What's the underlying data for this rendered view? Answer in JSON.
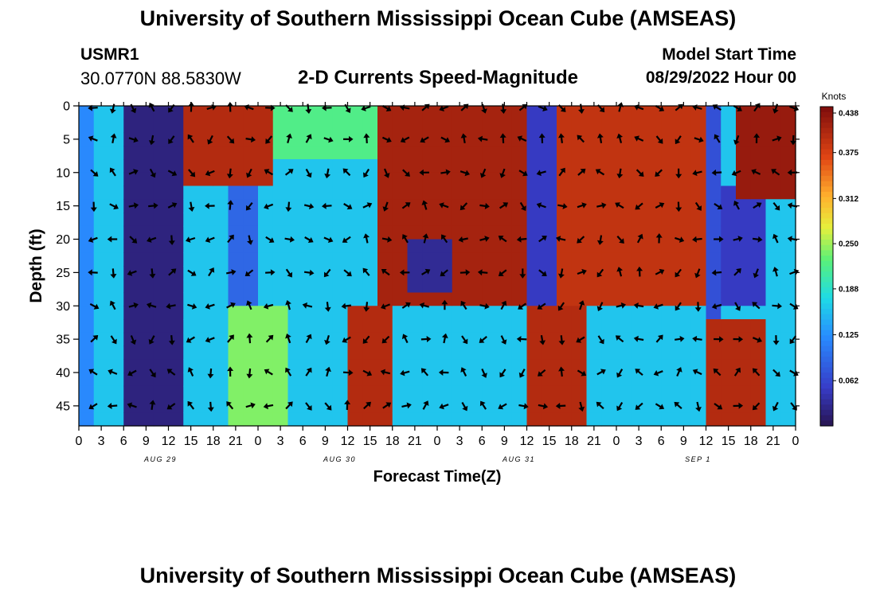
{
  "page": {
    "title": "University of Southern Mississippi Ocean Cube (AMSEAS)",
    "title_bottom": "University of Southern Mississippi Ocean Cube (AMSEAS)",
    "station_id": "USMR1",
    "station_coords": "30.0770N  88.5830W",
    "subtitle": "2-D Currents Speed-Magnitude",
    "start_label": "Model Start Time",
    "start_value": "08/29/2022 Hour 00"
  },
  "chart_data": {
    "type": "heatmap",
    "title": "2-D Currents Speed-Magnitude",
    "xlabel": "Forecast Time(Z)",
    "ylabel": "Depth (ft)",
    "x_ticks": [
      "0",
      "3",
      "6",
      "9",
      "12",
      "15",
      "18",
      "21",
      "0",
      "3",
      "6",
      "9",
      "12",
      "15",
      "18",
      "21",
      "0",
      "3",
      "6",
      "9",
      "12",
      "15",
      "18",
      "21",
      "0",
      "3",
      "6",
      "9",
      "12",
      "15",
      "18",
      "21",
      "0"
    ],
    "x_range_hours": [
      0,
      96
    ],
    "date_labels": [
      {
        "label": "AUG 29",
        "hour": 12
      },
      {
        "label": "AUG 30",
        "hour": 36
      },
      {
        "label": "AUG 31",
        "hour": 60
      },
      {
        "label": "SEP 1",
        "hour": 84
      }
    ],
    "y_ticks": [
      "0",
      "5",
      "10",
      "15",
      "20",
      "25",
      "30",
      "35",
      "40",
      "45"
    ],
    "y_range_ft": [
      0,
      48
    ],
    "colorbar": {
      "unit": "Knots",
      "ticks": [
        "0.438",
        "0.375",
        "0.312",
        "0.250",
        "0.188",
        "0.125",
        "0.062"
      ],
      "range": [
        0,
        0.438
      ]
    },
    "vector_rows_ft": [
      0,
      5,
      10,
      15,
      20,
      25,
      30,
      35,
      40,
      45
    ],
    "speed_field": [
      {
        "depths": [
          0,
          48
        ],
        "hour_range": [
          0,
          2
        ],
        "v": 0.12
      },
      {
        "depths": [
          0,
          48
        ],
        "hour_range": [
          7,
          13
        ],
        "v": 0.02
      },
      {
        "depths": [
          0,
          12
        ],
        "hour_range": [
          15,
          25
        ],
        "v": 0.4
      },
      {
        "depths": [
          12,
          30
        ],
        "hour_range": [
          20,
          24
        ],
        "v": 0.09
      },
      {
        "depths": [
          30,
          48
        ],
        "hour_range": [
          20,
          28
        ],
        "v": 0.24
      },
      {
        "depths": [
          0,
          8
        ],
        "hour_range": [
          26,
          40
        ],
        "v": 0.22
      },
      {
        "depths": [
          30,
          48
        ],
        "hour_range": [
          37,
          42
        ],
        "v": 0.4
      },
      {
        "depths": [
          0,
          30
        ],
        "hour_range": [
          41,
          62
        ],
        "v": 0.41
      },
      {
        "depths": [
          20,
          28
        ],
        "hour_range": [
          44,
          50
        ],
        "v": 0.03
      },
      {
        "depths": [
          0,
          30
        ],
        "hour_range": [
          61,
          64
        ],
        "v": 0.05
      },
      {
        "depths": [
          30,
          48
        ],
        "hour_range": [
          61,
          68
        ],
        "v": 0.4
      },
      {
        "depths": [
          0,
          30
        ],
        "hour_range": [
          65,
          84
        ],
        "v": 0.39
      },
      {
        "depths": [
          0,
          48
        ],
        "hour_range": [
          84,
          86
        ],
        "v": 0.07
      },
      {
        "depths": [
          12,
          30
        ],
        "hour_range": [
          86,
          92
        ],
        "v": 0.05
      },
      {
        "depths": [
          33,
          48
        ],
        "hour_range": [
          85,
          92
        ],
        "v": 0.4
      },
      {
        "depths": [
          0,
          14
        ],
        "hour_range": [
          89,
          96
        ],
        "v": 0.42
      }
    ]
  }
}
